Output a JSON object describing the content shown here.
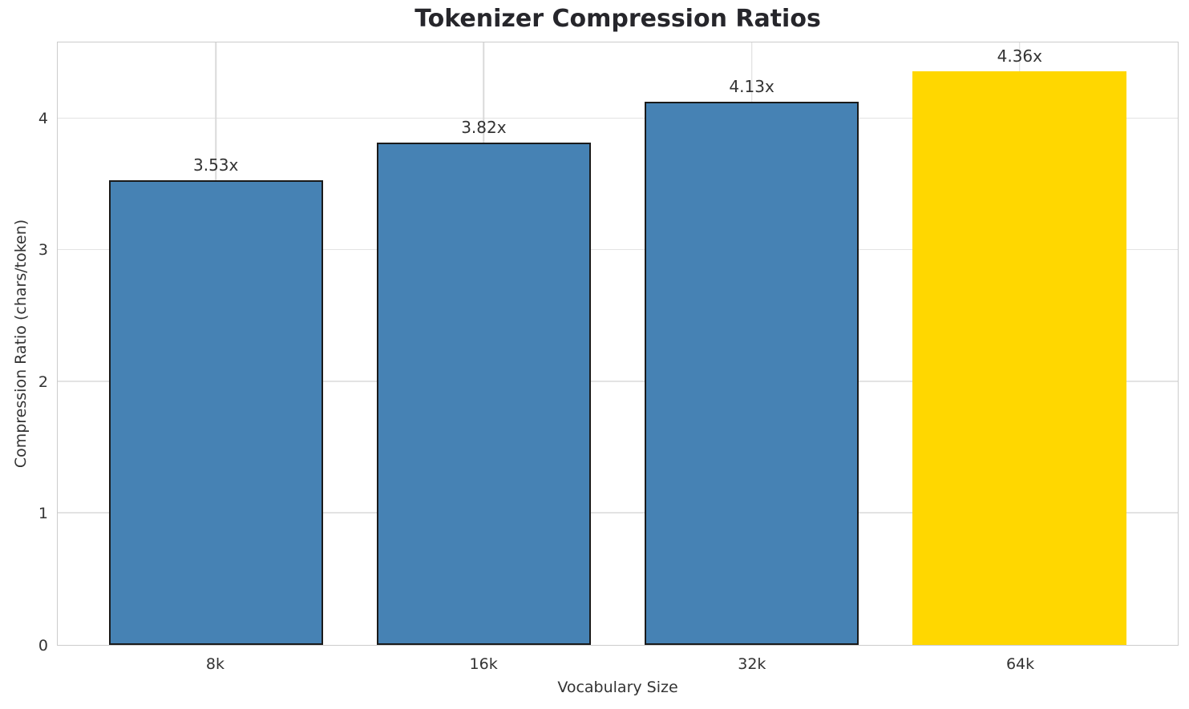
{
  "chart_data": {
    "type": "bar",
    "title": "Tokenizer Compression Ratios",
    "xlabel": "Vocabulary Size",
    "ylabel": "Compression Ratio (chars/token)",
    "categories": [
      "8k",
      "16k",
      "32k",
      "64k"
    ],
    "values": [
      3.53,
      3.82,
      4.13,
      4.36
    ],
    "value_labels": [
      "3.53x",
      "3.82x",
      "4.13x",
      "4.36x"
    ],
    "bar_colors": [
      "#4682B4",
      "#4682B4",
      "#4682B4",
      "#FFD700"
    ],
    "bar_edge_colors": [
      "#1a1a1a",
      "#1a1a1a",
      "#1a1a1a",
      "none"
    ],
    "highlight_index": 3,
    "yticks": [
      0,
      1,
      2,
      3,
      4
    ],
    "ylim": [
      0,
      4.58
    ],
    "xlim": [
      -0.59,
      3.59
    ],
    "bar_width": 0.8,
    "grid": true,
    "legend": "none",
    "grid_color": "#e3e3e3",
    "spine_color": "#cccccc",
    "bar_color_default": "#4682B4",
    "bar_color_highlight": "#FFD700",
    "text_color": "#333333",
    "title_color": "#26262b"
  }
}
